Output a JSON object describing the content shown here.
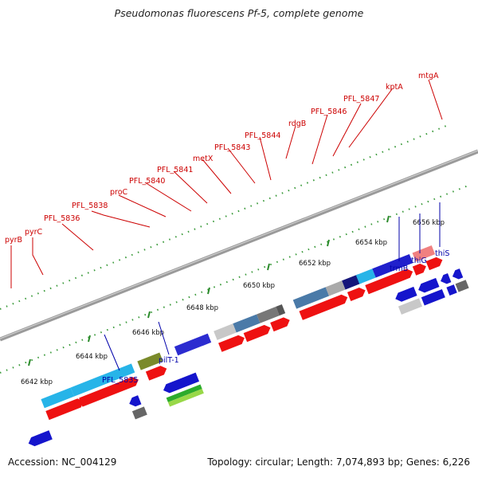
{
  "title": "Pseudomonas fluorescens Pf-5, complete genome",
  "accession": "Accession: NC_004129",
  "summary": "Topology: circular; Length: 7,074,893 bp; Genes: 6,226",
  "colors": {
    "forward_cds": "#ee1111",
    "reverse_cds": "#1515cc",
    "top_label": "#cc0000",
    "bottom_label": "#0000aa",
    "tick": "#2a8a2a",
    "backbone": "#888888"
  },
  "scale_labels": [
    "6642 kbp",
    "6644 kbp",
    "6646 kbp",
    "6648 kbp",
    "6650 kbp",
    "6652 kbp",
    "6654 kbp",
    "6656 kbp"
  ],
  "top_gene_labels": [
    "pyrB",
    "pyrC",
    "PFL_5836",
    "PFL_5838",
    "proC",
    "PFL_5840",
    "PFL_5841",
    "metX",
    "PFL_5843",
    "PFL_5844",
    "rdgB",
    "PFL_5846",
    "PFL_5847",
    "kptA",
    "mtgA"
  ],
  "bottom_gene_labels": [
    "PFL_5835",
    "pilT-1",
    "trmB",
    "thiG",
    "thiS"
  ]
}
